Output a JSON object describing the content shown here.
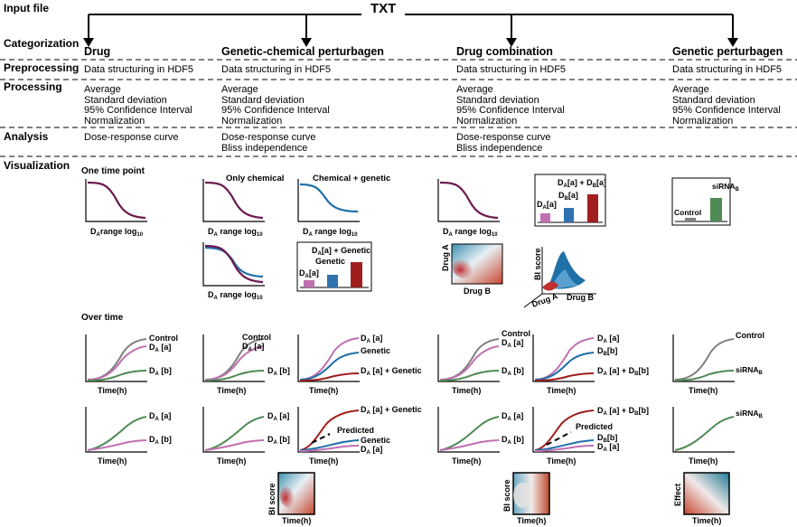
{
  "rows": {
    "input": "Input file",
    "categorization": "Categorization",
    "preprocessing": "Preprocessing",
    "processing": "Processing",
    "analysis": "Analysis",
    "visualization": "Visualization"
  },
  "input_file": "TXT",
  "categories": {
    "drug": "Drug",
    "genetic_chemical": "Genetic-chemical perturbagen",
    "drug_combination": "Drug combination",
    "genetic": "Genetic perturbagen"
  },
  "preprocessing_text": "Data structuring in HDF5",
  "processing_items": [
    "Average",
    "Standard deviation",
    "95% Confidence Interval",
    "Normalization"
  ],
  "analysis": {
    "drug": [
      "Dose-response curve"
    ],
    "genetic_chemical": [
      "Dose-response curve",
      "Bliss independence"
    ],
    "drug_combination": [
      "Dose-response curve",
      "Bliss independence"
    ],
    "genetic": []
  },
  "visual": {
    "one_time_point": "One time point",
    "over_time": "Over time",
    "only_chemical": "Only chemical",
    "chemical_genetic": "Chemical + genetic",
    "range_label": "range log",
    "time_label": "Time(h)",
    "control": "Control",
    "genetic": "Genetic",
    "predicted": "Predicted",
    "plus_genetic": "+ Genetic",
    "bi_score": "BI score",
    "effect": "Effect",
    "drug_a": "Drug A",
    "drug_b": "Drug B",
    "sirna": "siRNA"
  },
  "colors": {
    "purple_curve": "#6b1a4f",
    "blue_curve": "#1f6fa8",
    "grey": "#808080",
    "pink": "#c070b0",
    "green": "#4f8a55",
    "blue": "#2f72b0",
    "red": "#a01e1e",
    "teal": "#1a7a8c"
  }
}
